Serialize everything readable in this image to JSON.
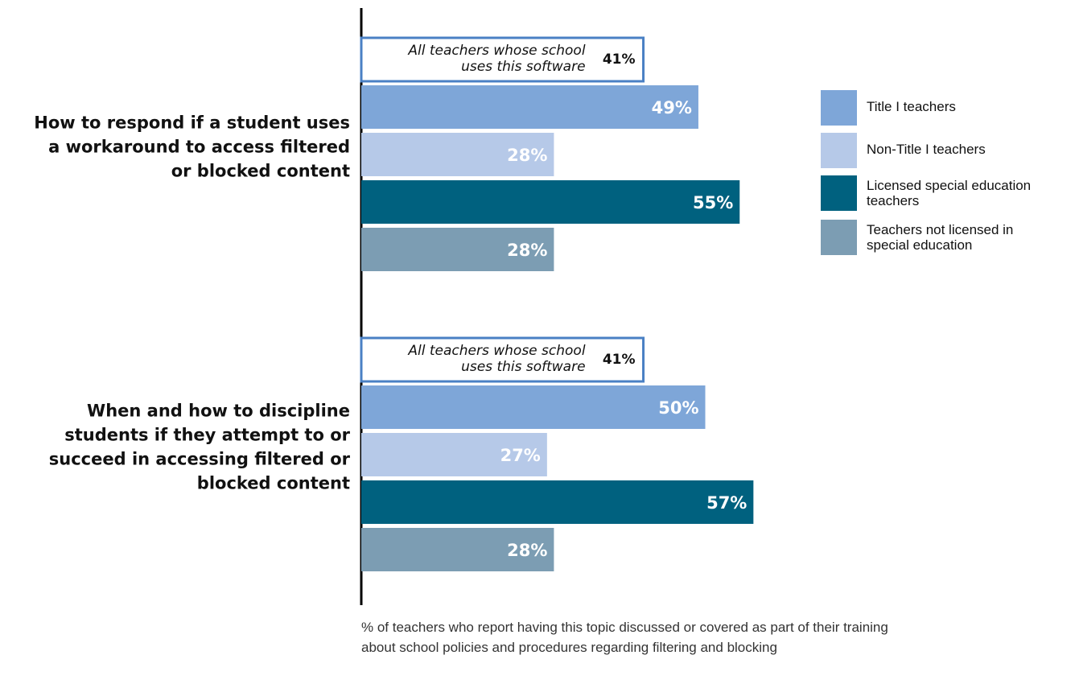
{
  "chart_data": {
    "type": "bar",
    "orientation": "horizontal",
    "xlim": [
      0,
      100
    ],
    "categories": [
      [
        "How to respond if a student uses",
        "a workaround to access filtered",
        "or blocked content"
      ],
      [
        "When and how to discipline",
        "students if they attempt to or",
        "succeed in accessing filtered or",
        "blocked content"
      ]
    ],
    "overall": {
      "label_lines": [
        "All teachers whose school",
        "uses this software"
      ],
      "values": [
        41,
        41
      ],
      "display": [
        "41%",
        "41%"
      ]
    },
    "series": [
      {
        "name": "Title I teachers",
        "color": "#7ea6d8",
        "values": [
          49,
          50
        ],
        "display": [
          "49%",
          "50%"
        ]
      },
      {
        "name": "Non-Title I teachers",
        "color": "#b6c9e8",
        "values": [
          28,
          27
        ],
        "display": [
          "28%",
          "27%"
        ]
      },
      {
        "name": "Licensed special education teachers",
        "color": "#00617f",
        "values": [
          55,
          57
        ],
        "display": [
          "55%",
          "57%"
        ]
      },
      {
        "name": "Teachers not licensed in special education",
        "color": "#7c9db3",
        "values": [
          28,
          28
        ],
        "display": [
          "28%",
          "28%"
        ]
      }
    ],
    "legend": {
      "position": "right",
      "entries": [
        [
          "Title I teachers"
        ],
        [
          "Non-Title I teachers"
        ],
        [
          "Licensed special education",
          "teachers"
        ],
        [
          "Teachers not licensed in",
          "special education"
        ]
      ]
    },
    "note": "% of teachers who report having this topic discussed or covered as part of their training about school policies and procedures regarding filtering and blocking",
    "overall_box_color": "#4a80c4",
    "grid": false
  }
}
